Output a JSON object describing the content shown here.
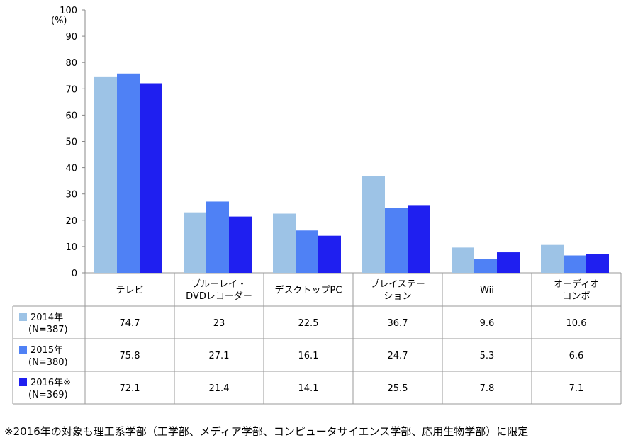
{
  "chart_data": {
    "type": "bar",
    "y_unit": "(%)",
    "ylim": [
      0,
      100
    ],
    "y_ticks": [
      0,
      10,
      20,
      30,
      40,
      50,
      60,
      70,
      80,
      90,
      100
    ],
    "grid": false,
    "legend": "data-table-rows",
    "categories": [
      [
        "テレビ"
      ],
      [
        "ブルーレイ・",
        "DVDレコーダー"
      ],
      [
        "デスクトップPC"
      ],
      [
        "プレイステー",
        "ション"
      ],
      [
        "Wii"
      ],
      [
        "オーディオ",
        "コンポ"
      ]
    ],
    "series": [
      {
        "name": "2014年",
        "n": "(N=387)",
        "color": "#9dc3e6",
        "values": [
          74.7,
          23,
          22.5,
          36.7,
          9.6,
          10.6
        ]
      },
      {
        "name": "2015年",
        "n": "(N=380)",
        "color": "#4f81f5",
        "values": [
          75.8,
          27.1,
          16.1,
          24.7,
          5.3,
          6.6
        ]
      },
      {
        "name": "2016年※",
        "n": "(N=369)",
        "color": "#1f1ff0",
        "values": [
          72.1,
          21.4,
          14.1,
          25.5,
          7.8,
          7.1
        ]
      }
    ]
  },
  "footnote": "※2016年の対象も理工系学部（工学部、メディア学部、コンピュータサイエンス学部、応用生物学部）に限定"
}
